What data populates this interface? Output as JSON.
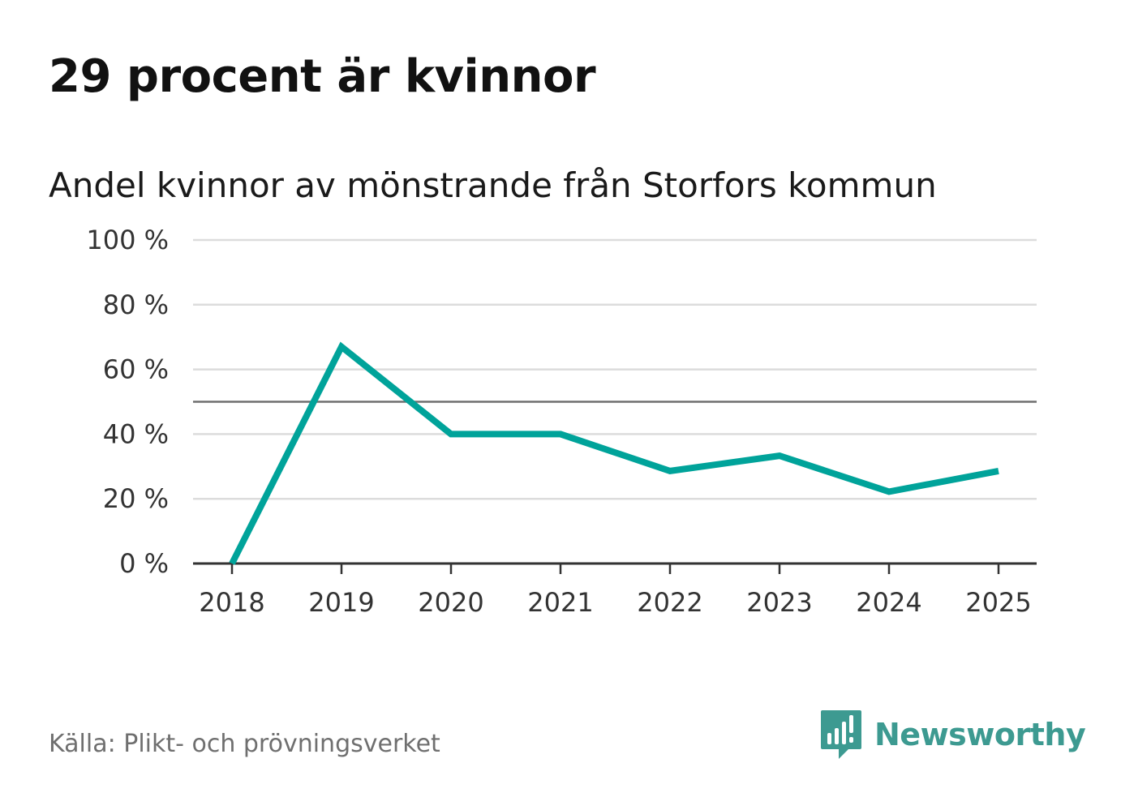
{
  "title": "29 procent är kvinnor",
  "subtitle": "Andel kvinnor av mönstrande från Storfors kommun",
  "source": "Källa: Plikt- och prövningsverket",
  "brand": {
    "name": "Newsworthy",
    "icon": "newsworthy-logo-icon",
    "color": "#3d9a91"
  },
  "chart_data": {
    "type": "line",
    "title": "29 procent är kvinnor",
    "subtitle": "Andel kvinnor av mönstrande från Storfors kommun",
    "categories": [
      "2018",
      "2019",
      "2020",
      "2021",
      "2022",
      "2023",
      "2024",
      "2025"
    ],
    "series": [
      {
        "name": "Andel kvinnor",
        "values": [
          0,
          67,
          40,
          40,
          28.6,
          33.3,
          22.2,
          28.6
        ],
        "color": "#00a39a"
      }
    ],
    "ylim": [
      0,
      100
    ],
    "yticks": [
      0,
      20,
      40,
      60,
      80,
      100
    ],
    "ytick_labels": [
      "0 %",
      "20 %",
      "40 %",
      "60 %",
      "80 %",
      "100 %"
    ],
    "reference_line": 50,
    "grid": true,
    "xlabel": "",
    "ylabel": ""
  }
}
